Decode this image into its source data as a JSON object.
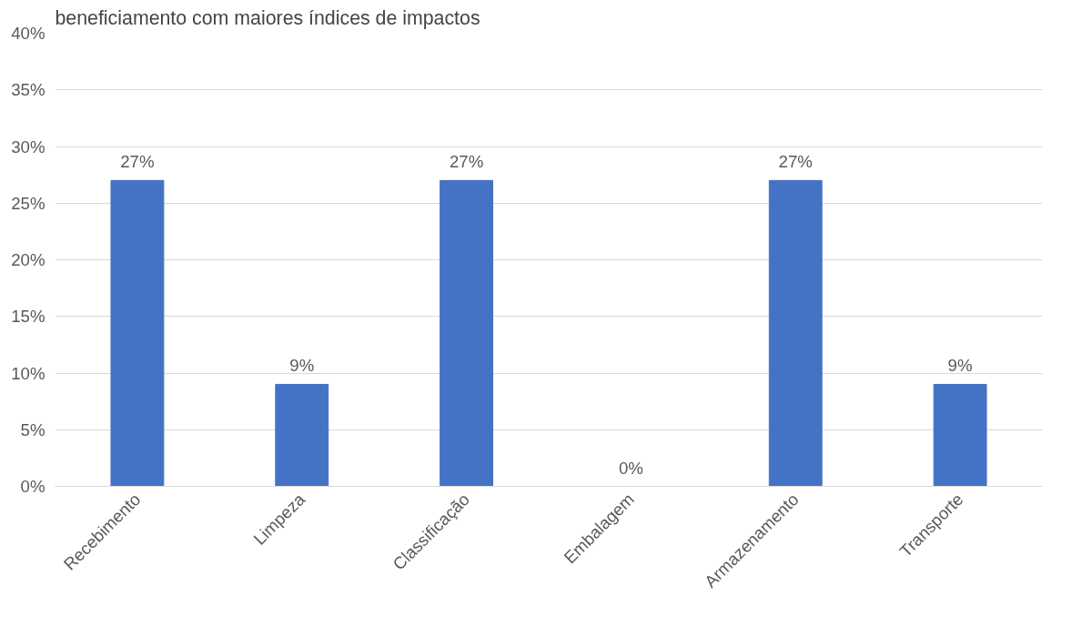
{
  "chart_data": {
    "type": "bar",
    "title": "beneficiamento com maiores índices de impactos",
    "categories": [
      "Recebimento",
      "Limpeza",
      "Classificação",
      "Embalagem",
      "Armazenamento",
      "Transporte"
    ],
    "values": [
      27,
      9,
      27,
      0,
      27,
      9
    ],
    "value_labels": [
      "27%",
      "9%",
      "27%",
      "0%",
      "27%",
      "9%"
    ],
    "color": "#4472c4",
    "ylim": [
      0,
      40
    ],
    "yticks": [
      {
        "value": 0,
        "label": "0%"
      },
      {
        "value": 5,
        "label": "5%"
      },
      {
        "value": 10,
        "label": "10%"
      },
      {
        "value": 15,
        "label": "15%"
      },
      {
        "value": 20,
        "label": "20%"
      },
      {
        "value": 25,
        "label": "25%"
      },
      {
        "value": 30,
        "label": "30%"
      },
      {
        "value": 35,
        "label": "35%"
      },
      {
        "value": 40,
        "label": "40%"
      }
    ],
    "grid": "y"
  }
}
